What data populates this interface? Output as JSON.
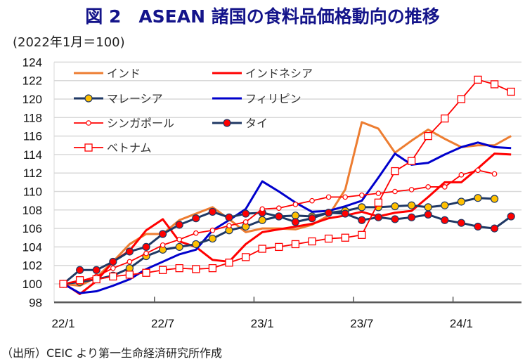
{
  "title": "図 2　ASEAN 諸国の食料品価格動向の推移",
  "subtitle": "(2022年1月＝100)",
  "source": "（出所）CEIC より第一生命経済研究所作成",
  "chart_data": {
    "type": "line",
    "title": "図 2　ASEAN 諸国の食料品価格動向の推移",
    "ylabel": "(2022年1月＝100)",
    "ylim": [
      98,
      124
    ],
    "yticks": [
      98,
      100,
      102,
      104,
      106,
      108,
      110,
      112,
      114,
      116,
      118,
      120,
      122,
      124
    ],
    "x": [
      "22/1",
      "22/2",
      "22/3",
      "22/4",
      "22/5",
      "22/6",
      "22/7",
      "22/8",
      "22/9",
      "22/10",
      "22/11",
      "22/12",
      "23/1",
      "23/2",
      "23/3",
      "23/4",
      "23/5",
      "23/6",
      "23/7",
      "23/8",
      "23/9",
      "23/10",
      "23/11",
      "23/12",
      "24/1",
      "24/2",
      "24/3",
      "24/4"
    ],
    "xtick_labels": [
      "22/1",
      "22/7",
      "23/1",
      "23/7",
      "24/1"
    ],
    "grid": "horizontal",
    "legend_placement": "top-left",
    "series": [
      {
        "name": "インド",
        "color": "#ed7d31",
        "marker": "none",
        "values": [
          100,
          99.8,
          100.7,
          102.4,
          104.3,
          105.4,
          105.4,
          106.9,
          107.6,
          108.3,
          107.0,
          105.6,
          106.0,
          106.0,
          105.9,
          106.4,
          107.4,
          110.2,
          117.5,
          116.8,
          114.2,
          115.5,
          116.7,
          115.7,
          114.8,
          115.0,
          115.0,
          116.0
        ]
      },
      {
        "name": "インドネシア",
        "color": "#ff0000",
        "marker": "none",
        "values": [
          100.1,
          98.9,
          100.3,
          102.4,
          103.6,
          105.8,
          107.0,
          104.6,
          104.0,
          102.6,
          102.4,
          104.3,
          105.6,
          105.9,
          106.2,
          106.5,
          107.1,
          107.4,
          107.8,
          107.3,
          107.7,
          107.9,
          109.4,
          111.0,
          111.0,
          112.5,
          114.1,
          114.0
        ]
      },
      {
        "name": "マレーシア",
        "color": "#1f3864",
        "marker": "circle",
        "marker_fill": "#ffc000",
        "values": [
          100,
          100.2,
          100.5,
          100.9,
          101.7,
          103.0,
          103.7,
          104.0,
          104.3,
          104.9,
          105.8,
          106.2,
          106.9,
          107.3,
          107.4,
          107.3,
          107.7,
          107.9,
          108.3,
          108.3,
          108.4,
          108.5,
          108.3,
          108.5,
          108.9,
          109.3,
          109.2,
          null
        ]
      },
      {
        "name": "フィリピン",
        "color": "#0000cc",
        "marker": "none",
        "values": [
          100,
          99.0,
          99.2,
          99.8,
          100.5,
          101.6,
          102.4,
          103.2,
          103.7,
          105.8,
          106.9,
          108.1,
          111.1,
          110.0,
          108.8,
          107.8,
          107.9,
          108.4,
          109.0,
          111.5,
          114.1,
          112.9,
          113.1,
          114.0,
          114.8,
          115.3,
          114.8,
          114.7
        ]
      },
      {
        "name": "シンガポール",
        "color": "#ff0000",
        "marker": "circle-small",
        "marker_fill": "#ffffff",
        "values": [
          100,
          100.3,
          100.8,
          101.7,
          102.4,
          103.3,
          104.2,
          104.8,
          105.5,
          105.8,
          106.3,
          106.7,
          108.1,
          108.2,
          108.6,
          109.0,
          109.4,
          109.4,
          109.6,
          109.8,
          110.0,
          110.2,
          110.5,
          110.5,
          111.8,
          112.3,
          111.9,
          null
        ]
      },
      {
        "name": "タイ",
        "color": "#1f3864",
        "marker": "circle",
        "marker_fill": "#ff0000",
        "values": [
          100,
          101.5,
          101.5,
          102.4,
          103.5,
          104.0,
          105.4,
          106.4,
          107.1,
          107.8,
          107.2,
          107.6,
          107.7,
          107.3,
          106.7,
          107.1,
          107.7,
          107.6,
          106.9,
          107.2,
          107.0,
          107.2,
          107.5,
          106.9,
          106.6,
          106.2,
          106.0,
          107.3
        ]
      },
      {
        "name": "ベトナム",
        "color": "#ff0000",
        "marker": "square",
        "marker_fill": "#ffffff",
        "values": [
          100,
          100.4,
          100.5,
          100.8,
          101.0,
          101.2,
          101.5,
          101.7,
          101.6,
          101.7,
          102.3,
          102.9,
          103.8,
          104.0,
          104.3,
          104.6,
          104.9,
          105.0,
          105.3,
          108.8,
          112.2,
          113.3,
          116.0,
          117.9,
          120.0,
          122.1,
          121.6,
          120.8
        ]
      }
    ]
  }
}
